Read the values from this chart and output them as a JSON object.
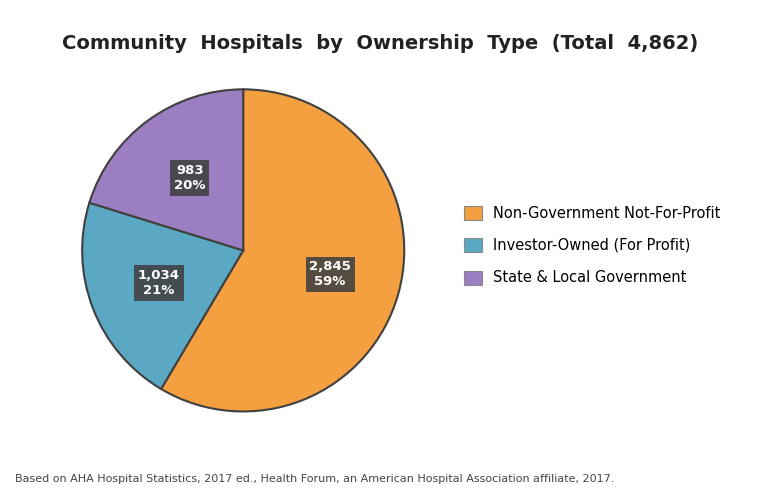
{
  "title": "Community  Hospitals  by  Ownership  Type  (Total  4,862)",
  "values": [
    2845,
    1034,
    983
  ],
  "labels": [
    "Non-Government Not-For-Profit",
    "Investor-Owned (For Profit)",
    "State & Local Government"
  ],
  "colors": [
    "#F5A040",
    "#5BA8C4",
    "#9B7FC2"
  ],
  "slice_labels": [
    "2,845\n59%",
    "1,034\n21%",
    "983\n20%"
  ],
  "label_bg_color": "#404040",
  "label_text_color": "#ffffff",
  "footnote": "Based on AHA Hospital Statistics, 2017 ed., Health Forum, an American Hospital Association affiliate, 2017.",
  "background_color": "#ffffff",
  "title_fontsize": 14,
  "legend_fontsize": 10.5,
  "label_fontsize": 9.5,
  "footnote_fontsize": 8,
  "startangle": 90,
  "pie_edge_color": "#404040",
  "pie_linewidth": 1.5
}
